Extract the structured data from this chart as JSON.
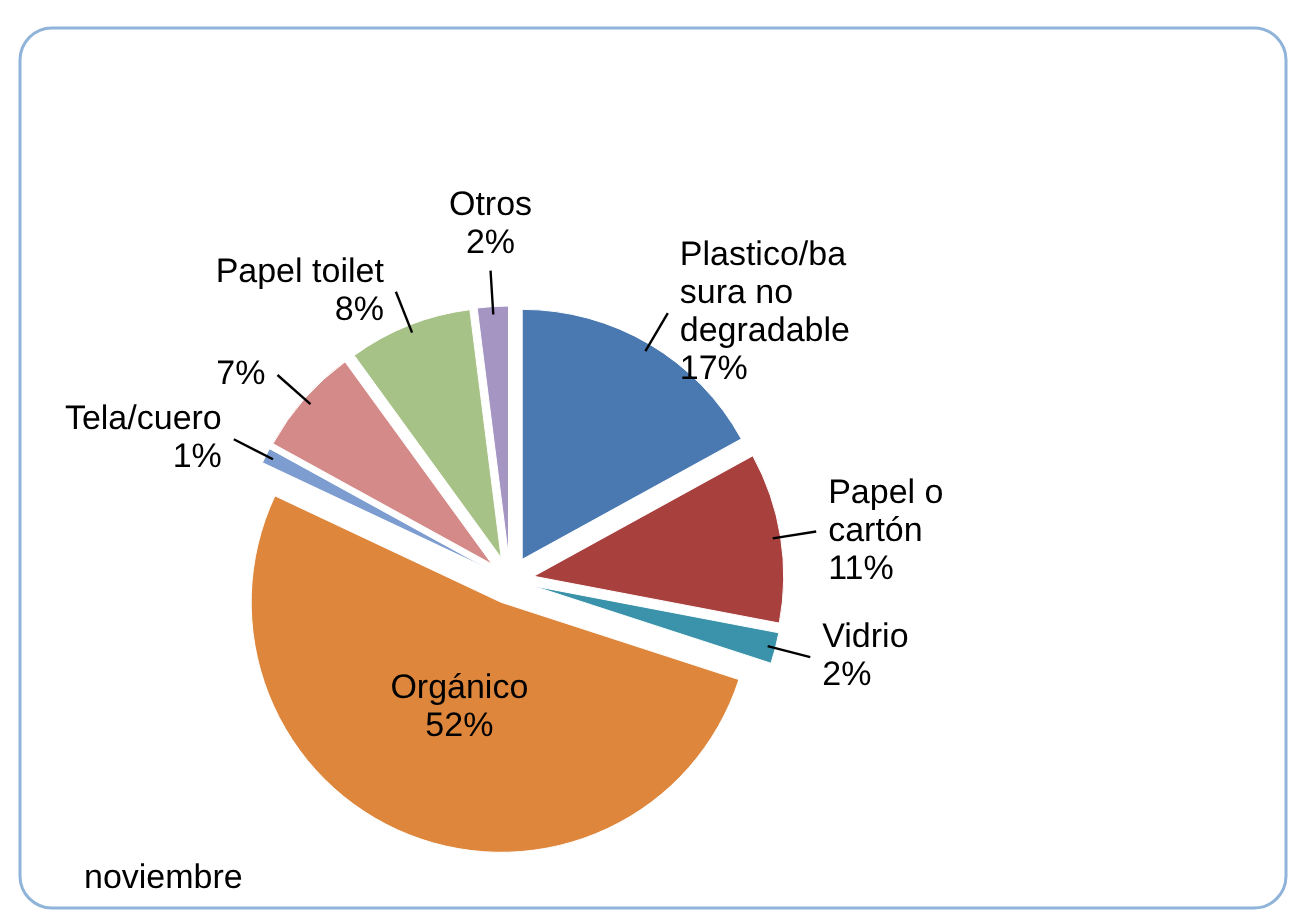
{
  "chart_data": {
    "type": "pie",
    "categories": [
      "Plastico/ba sura no degradable",
      "Papel o cartón",
      "Vidrio",
      "Orgánico",
      "Tela/cuero",
      null,
      "Papel toilet",
      "Otros"
    ],
    "values": [
      17,
      11,
      2,
      52,
      1,
      7,
      8,
      2
    ],
    "colors": [
      "#4a78b0",
      "#a8403e",
      "#3a93aa",
      "#de873c",
      "#7d9ccf",
      "#d48a88",
      "#a7c287",
      "#a495c3"
    ],
    "value_labels": [
      "17%",
      "11%",
      "2%",
      "52%",
      "1%",
      "7%",
      "8%",
      "2%"
    ],
    "annotations": [
      "noviembre"
    ]
  }
}
